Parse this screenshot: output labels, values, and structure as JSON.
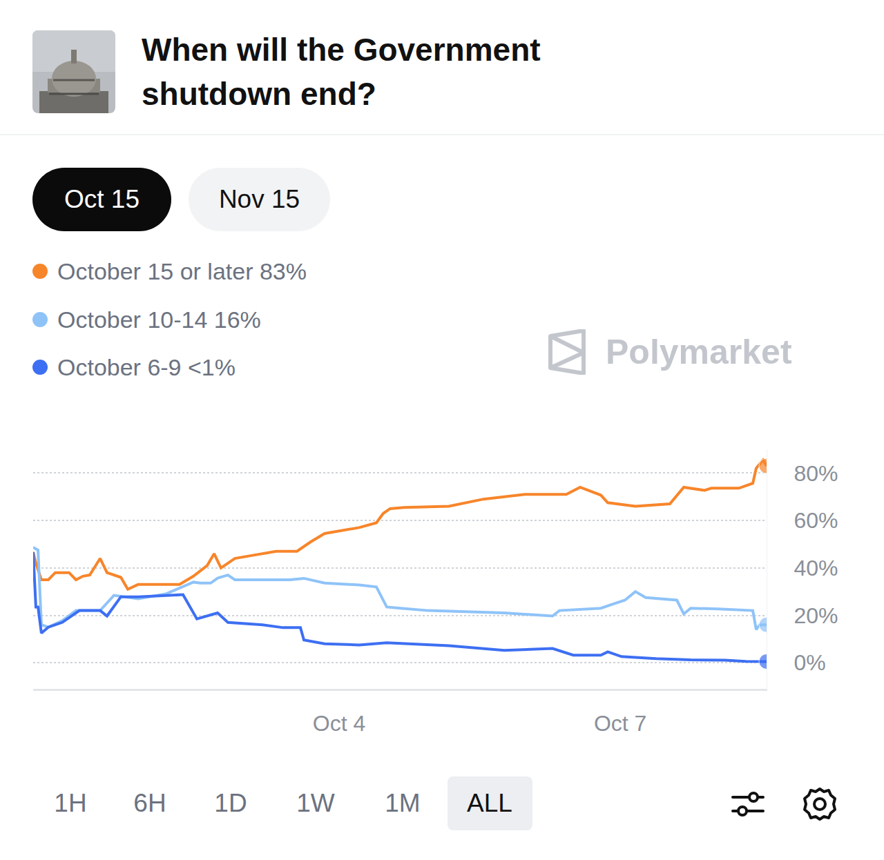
{
  "header": {
    "title_lines": [
      "When will the Government",
      "shutdown end?"
    ]
  },
  "tabs": [
    {
      "label": "Oct 15",
      "selected": true
    },
    {
      "label": "Nov 15",
      "selected": false
    }
  ],
  "watermark": "Polymarket",
  "chart_data": {
    "type": "line",
    "xlim": [
      0.735,
      8.561
    ],
    "xticks": [
      {
        "value": 4,
        "label": "Oct 4"
      },
      {
        "value": 7,
        "label": "Oct 7"
      }
    ],
    "ylim": [
      -11,
      90
    ],
    "yticks": [
      {
        "value": 0,
        "label": "0%"
      },
      {
        "value": 20,
        "label": "20%"
      },
      {
        "value": 40,
        "label": "40%"
      },
      {
        "value": 60,
        "label": "60%"
      },
      {
        "value": 80,
        "label": "80%"
      }
    ],
    "grid": true,
    "series": [
      {
        "name": "October 15 or later",
        "color": "#f7852a",
        "current": 83,
        "current_label": "83%",
        "marker": "end_dot",
        "x": [
          0.735,
          0.764,
          0.823,
          0.897,
          0.971,
          1.118,
          1.192,
          1.266,
          1.339,
          1.45,
          1.523,
          1.671,
          1.745,
          1.855,
          2.297,
          2.445,
          2.592,
          2.666,
          2.739,
          2.887,
          3.034,
          3.329,
          3.55,
          3.697,
          3.845,
          4.066,
          4.213,
          4.397,
          4.471,
          4.545,
          4.692,
          5.171,
          5.54,
          5.982,
          6.424,
          6.571,
          6.792,
          6.866,
          7.161,
          7.529,
          7.677,
          7.898,
          7.972,
          8.266,
          8.414,
          8.45,
          8.524,
          8.561
        ],
        "values": [
          46.7,
          42,
          35,
          35,
          38,
          38,
          35,
          36.5,
          37,
          44,
          38,
          36,
          31,
          33,
          33,
          36.5,
          41,
          46,
          40,
          44,
          45,
          47,
          47,
          51,
          54.5,
          56,
          57,
          59,
          63,
          65,
          65.5,
          66,
          69,
          71,
          71,
          74,
          70.7,
          67.5,
          66,
          67,
          74,
          72.7,
          73.6,
          73.6,
          75.7,
          82,
          85.5,
          83
        ]
      },
      {
        "name": "October 10-14",
        "color": "#8fc3f8",
        "current": 16,
        "current_label": "16%",
        "marker": "end_dot",
        "x": [
          0.735,
          0.787,
          0.823,
          0.897,
          1.045,
          1.192,
          1.45,
          1.523,
          1.597,
          1.855,
          2.15,
          2.445,
          2.518,
          2.629,
          2.703,
          2.813,
          2.887,
          3.476,
          3.624,
          3.845,
          4.213,
          4.397,
          4.508,
          4.655,
          4.95,
          5.761,
          6.277,
          6.35,
          6.792,
          6.94,
          7.05,
          7.161,
          7.271,
          7.603,
          7.677,
          7.751,
          8.045,
          8.414,
          8.45,
          8.487,
          8.561
        ],
        "values": [
          48.7,
          47.5,
          16,
          15,
          17.7,
          22,
          22,
          25,
          28.4,
          27,
          29,
          34,
          33.6,
          33.6,
          35.7,
          37,
          35,
          35,
          35.6,
          33.6,
          32.8,
          32,
          23.5,
          23,
          22,
          21,
          19.7,
          22,
          23,
          25,
          26.4,
          30,
          27.5,
          26.4,
          20.6,
          23,
          22.7,
          22,
          14,
          16,
          16
        ]
      },
      {
        "name": "October 6-9",
        "color": "#3d6ff2",
        "current": 0.5,
        "current_label": "<1%",
        "marker": "end_dot",
        "x": [
          0.735,
          0.764,
          0.787,
          0.823,
          0.897,
          1.045,
          1.229,
          1.45,
          1.523,
          1.671,
          1.855,
          2.334,
          2.482,
          2.703,
          2.813,
          3.182,
          3.403,
          3.587,
          3.624,
          3.845,
          4.213,
          4.508,
          5.171,
          5.54,
          5.761,
          6.277,
          6.498,
          6.792,
          6.866,
          7.014,
          7.382,
          7.751,
          8.119,
          8.34,
          8.561
        ],
        "values": [
          46.7,
          23.5,
          23.5,
          12.5,
          15,
          17,
          22,
          22,
          19.7,
          27.8,
          27.8,
          28.7,
          18.5,
          21,
          17,
          16,
          14.8,
          14.8,
          9.6,
          8,
          7.5,
          8.4,
          7.2,
          6,
          5.2,
          6,
          3.2,
          3.2,
          4.6,
          2.6,
          1.7,
          1.2,
          1.1,
          0.6,
          0.5
        ]
      }
    ]
  },
  "time_ranges": [
    {
      "label": "1H",
      "selected": false
    },
    {
      "label": "6H",
      "selected": false
    },
    {
      "label": "1D",
      "selected": false
    },
    {
      "label": "1W",
      "selected": false
    },
    {
      "label": "1M",
      "selected": false
    },
    {
      "label": "ALL",
      "selected": true
    }
  ]
}
